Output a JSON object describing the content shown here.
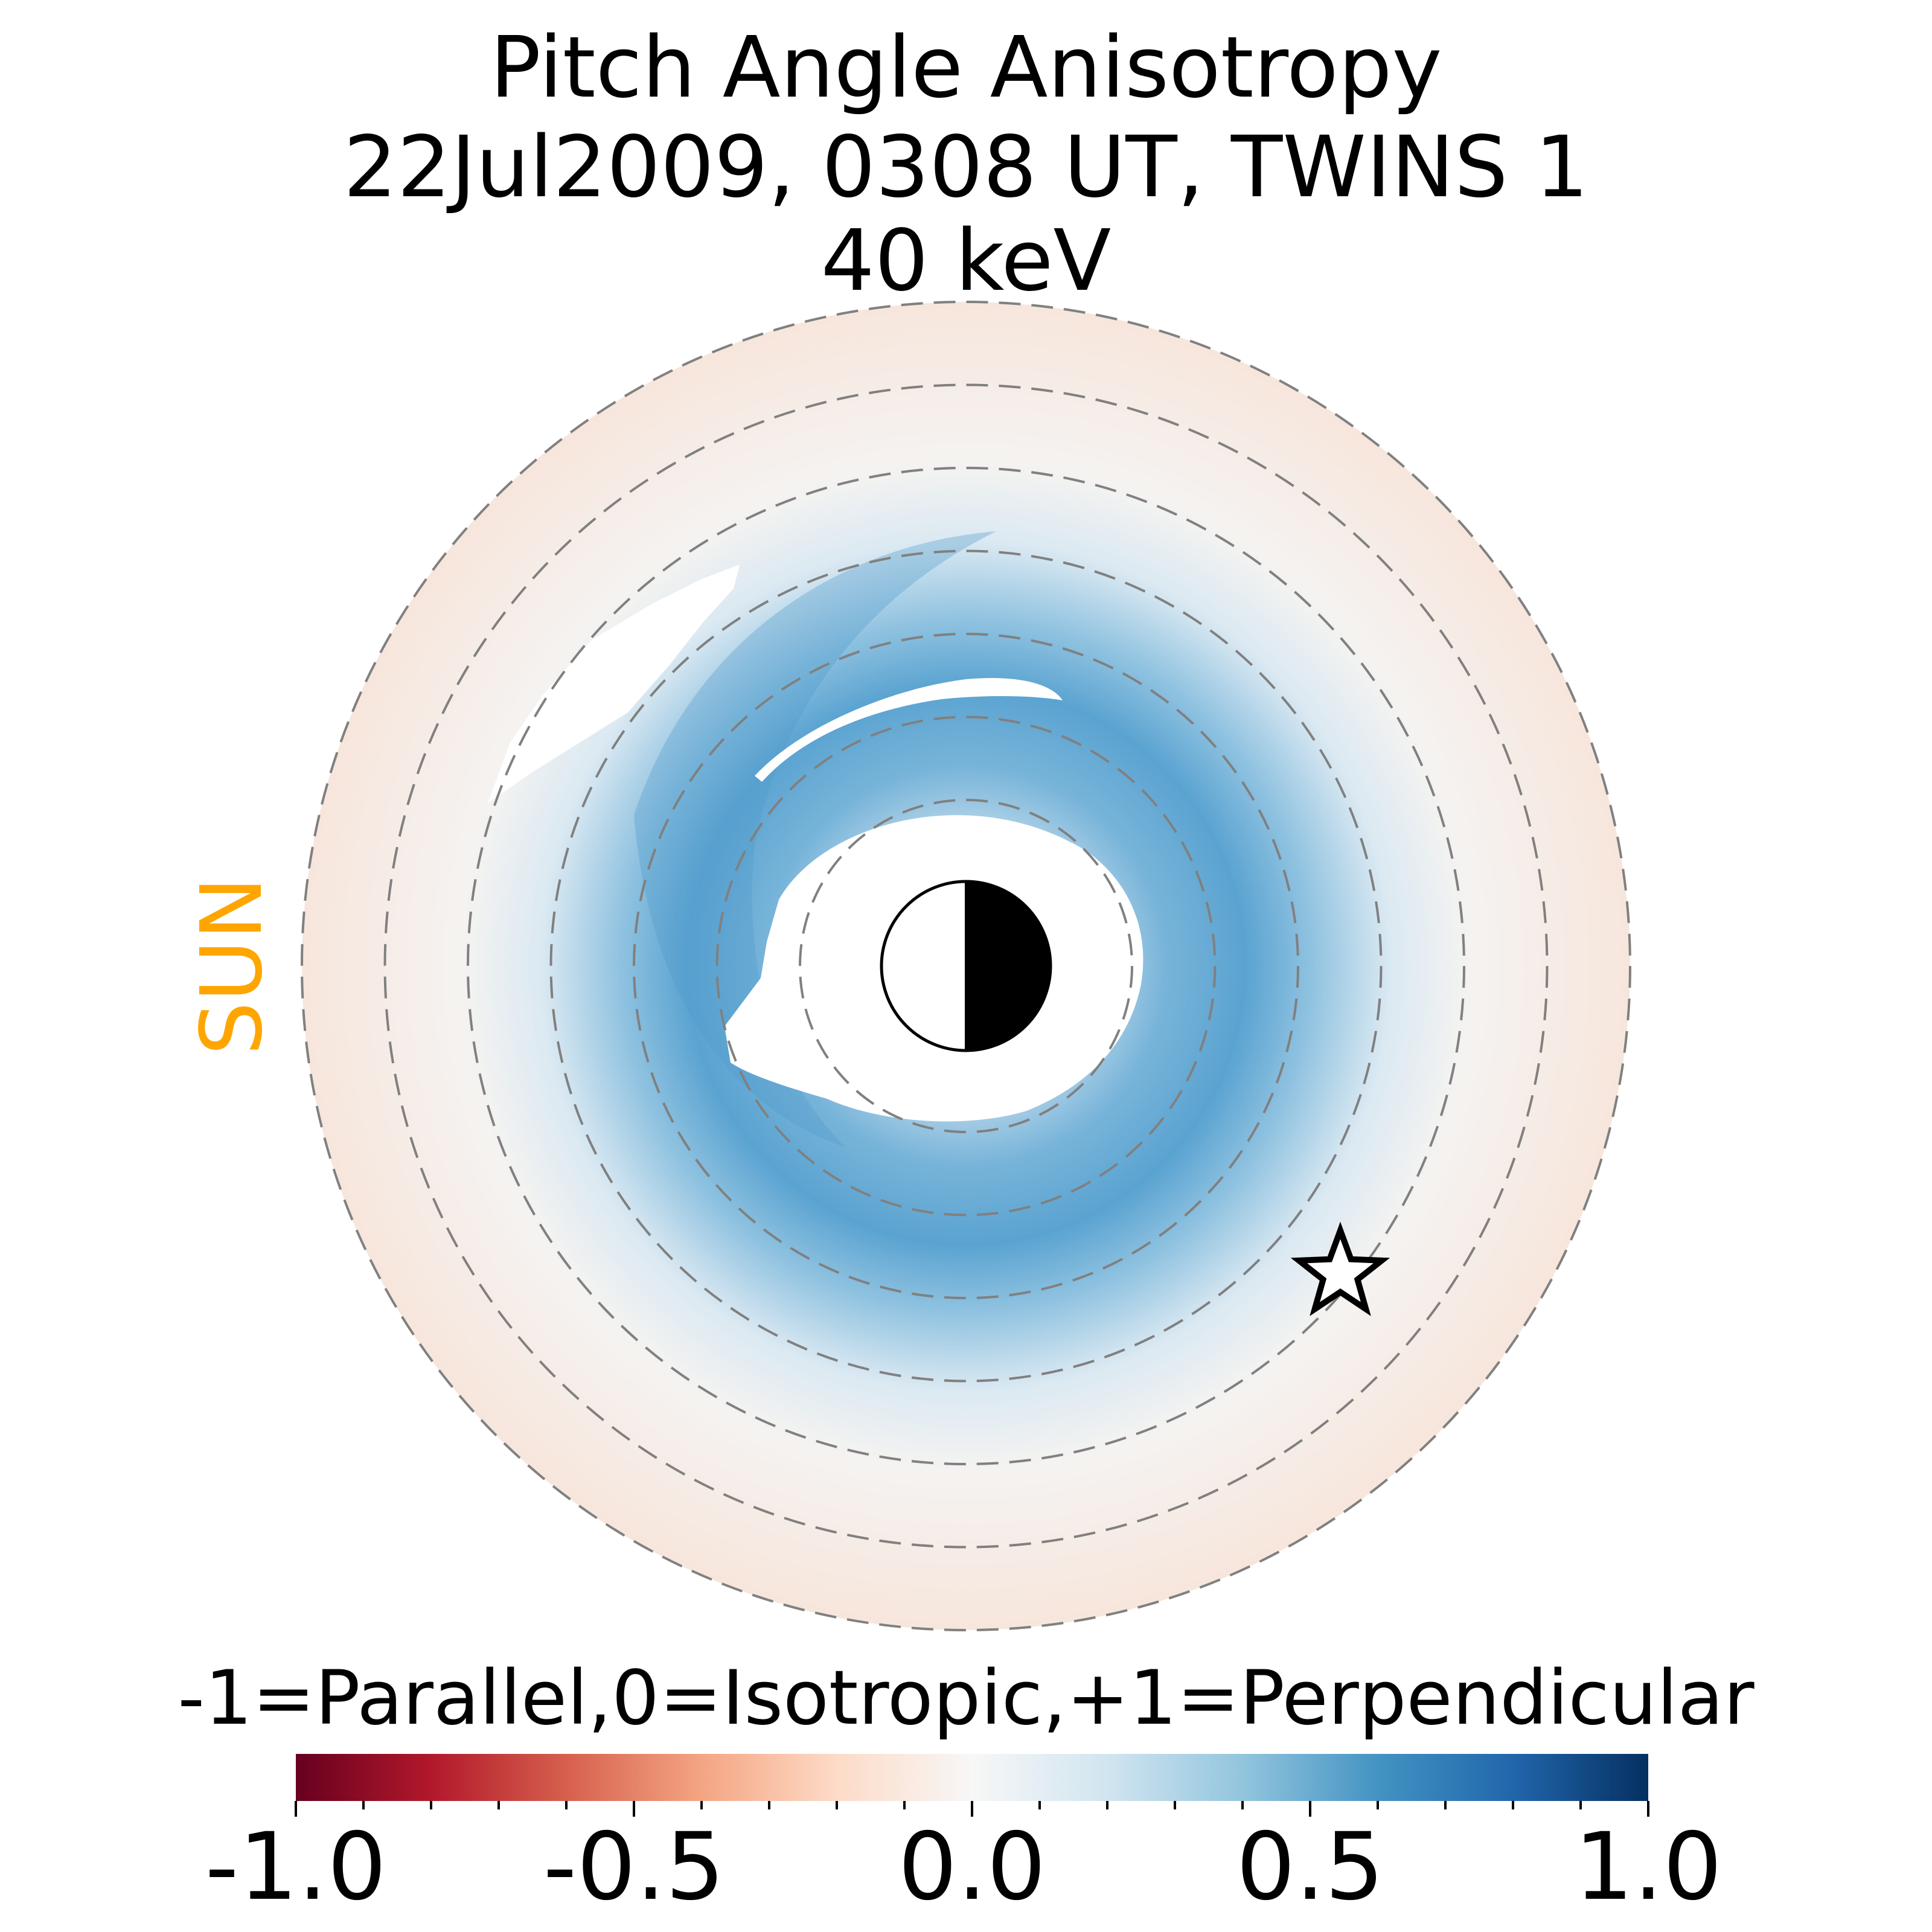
{
  "chart_data": {
    "type": "heatmap",
    "projection": "polar",
    "title": "Pitch Angle Anisotropy",
    "subtitle_date": "22Jul2009, 0308 UT,  TWINS 1",
    "subtitle_energy": "40 keV",
    "sun_label": "SUN",
    "sun_direction": "left",
    "dashed_ring_count": 8,
    "max_ring_value": 8,
    "colorbar": {
      "label": "-1=Parallel,0=Isotropic,+1=Perpendicular",
      "range": [
        -1.0,
        1.0
      ],
      "ticks": [
        "-1.0",
        "-0.5",
        "0.0",
        "0.5",
        "1.0"
      ],
      "colormap": [
        "#67001f",
        "#b2182b",
        "#d6604d",
        "#f4a582",
        "#fddbc7",
        "#f7f7f7",
        "#d1e5f0",
        "#92c5de",
        "#4393c3",
        "#2166ac",
        "#053061"
      ]
    },
    "regions": [
      {
        "name": "inner-ring",
        "value": 0.5
      },
      {
        "name": "mid-ring",
        "value": 0.4
      },
      {
        "name": "outer-ring-dayside",
        "value": -0.05
      },
      {
        "name": "outer-ring-nightside",
        "value": 0.1
      }
    ],
    "star_marker": "star"
  },
  "colors": {
    "sun_label": "#ffa500",
    "grid": "#808080"
  }
}
